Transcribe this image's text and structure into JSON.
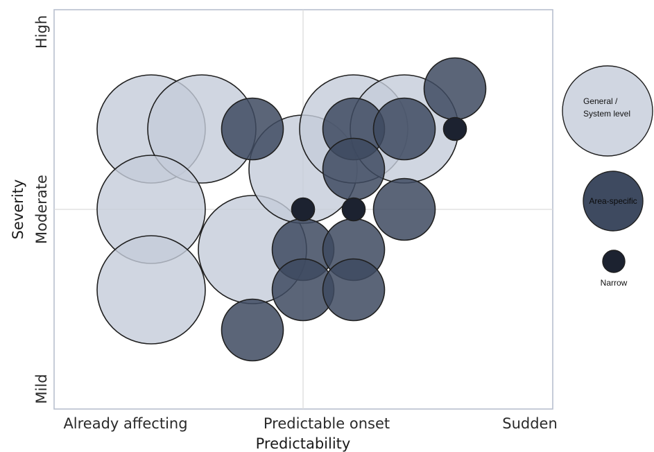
{
  "chart_data": {
    "type": "scatter",
    "subtype": "bubble",
    "xlabel": "Predictability",
    "ylabel": "Severity",
    "x_ticks": [
      {
        "label": "Already affecting",
        "value": 0
      },
      {
        "label": "Predictable onset",
        "value": 1
      },
      {
        "label": "Sudden",
        "value": 2
      }
    ],
    "y_ticks": [
      {
        "label": "Mild",
        "value": 0
      },
      {
        "label": "Moderate",
        "value": 1
      },
      {
        "label": "High",
        "value": 2
      }
    ],
    "xlim": [
      -0.5,
      2.0
    ],
    "ylim": [
      -0.95,
      1.0
    ],
    "grid": "center cross lines",
    "legend_position": "right",
    "series": [
      {
        "name": "General / System level",
        "color": "#c4ccd9",
        "size": "large",
        "points": [
          [
            -0.6,
            0.4
          ],
          [
            -0.4,
            0.4
          ],
          [
            -0.6,
            0
          ],
          [
            -0.6,
            -0.4
          ],
          [
            -0.2,
            -0.2
          ],
          [
            0,
            0.2
          ],
          [
            0.2,
            0.4
          ],
          [
            0.4,
            0.4
          ]
        ]
      },
      {
        "name": "Area-specific",
        "color": "#3e4a60",
        "size": "medium",
        "points": [
          [
            -0.2,
            0.4
          ],
          [
            0.2,
            0.4
          ],
          [
            0.2,
            0.2
          ],
          [
            0.4,
            0.4
          ],
          [
            0.6,
            0.6
          ],
          [
            0.4,
            0
          ],
          [
            0,
            -0.2
          ],
          [
            0.2,
            -0.2
          ],
          [
            0,
            -0.4
          ],
          [
            0.2,
            -0.4
          ],
          [
            -0.2,
            -0.6
          ]
        ]
      },
      {
        "name": "Narrow",
        "color": "#1c2230",
        "size": "small",
        "points": [
          [
            0.6,
            0.4
          ],
          [
            0,
            0
          ],
          [
            0.2,
            0
          ]
        ]
      }
    ]
  }
}
